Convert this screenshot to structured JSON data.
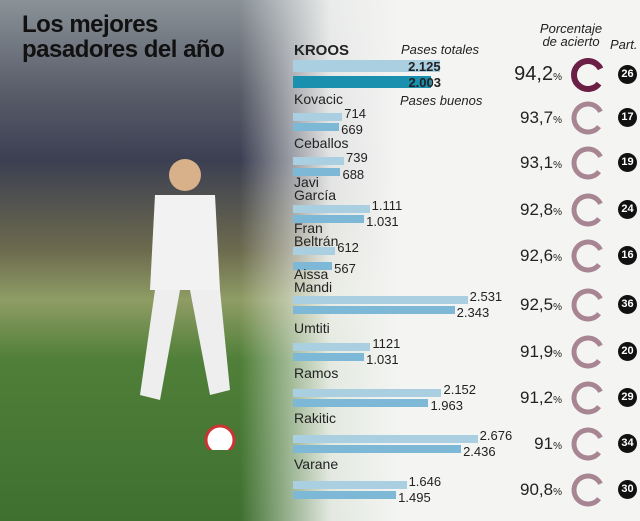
{
  "title": {
    "line1": "Los mejores",
    "line2": "pasadores del año"
  },
  "headers": {
    "total": "Pases totales",
    "good": "Pases buenos",
    "percent_line1": "Porcentaje",
    "percent_line2": "de acierto",
    "matches": "Part."
  },
  "colors": {
    "total_bar": "#a9cfe0",
    "good_bar": "#7db8d6",
    "kroos_good_bar": "#1a8fae",
    "kroos_ring": "#6b1f45",
    "ring": "#a88593"
  },
  "chart_data": {
    "type": "bar",
    "orientation": "horizontal",
    "categories": [
      "KROOS",
      "Kovacic",
      "Ceballos",
      "Javi García",
      "Fran Beltrán",
      "Aissa Mandi",
      "Umtiti",
      "Ramos",
      "Rakitic",
      "Varane"
    ],
    "series": [
      {
        "name": "Pases totales",
        "values": [
          2125,
          714,
          739,
          1111,
          612,
          2531,
          1121,
          2152,
          2676,
          1646
        ],
        "labels": [
          "2.125",
          "714",
          "739",
          "1.111",
          "612",
          "2.531",
          "1121",
          "2.152",
          "2.676",
          "1.646"
        ]
      },
      {
        "name": "Pases buenos",
        "values": [
          2003,
          669,
          688,
          1031,
          567,
          2343,
          1031,
          1963,
          2436,
          1495
        ],
        "labels": [
          "2.003",
          "669",
          "688",
          "1.031",
          "567",
          "2.343",
          "1.031",
          "1.963",
          "2.436",
          "1.495"
        ]
      }
    ],
    "percent": [
      "94,2",
      "93,7",
      "93,1",
      "92,8",
      "92,6",
      "92,5",
      "91,9",
      "91,2",
      "91",
      "90,8"
    ],
    "percent_unit": "%",
    "matches": [
      "26",
      "17",
      "19",
      "24",
      "16",
      "36",
      "20",
      "29",
      "34",
      "30"
    ]
  }
}
